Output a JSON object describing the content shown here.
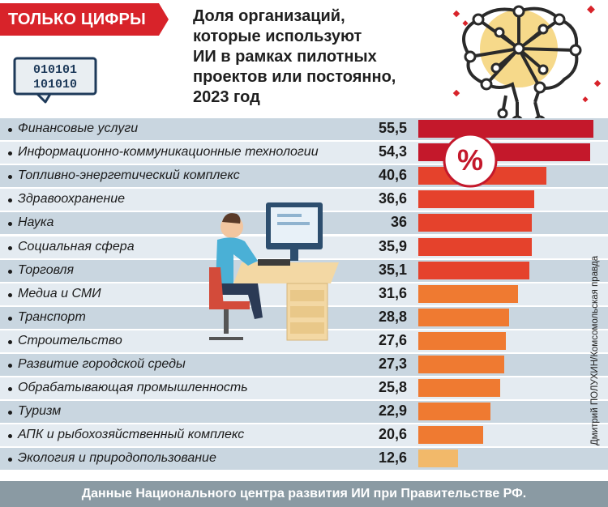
{
  "header": {
    "badge": "ТОЛЬКО ЦИФРЫ",
    "title_lines": [
      "Доля организаций,",
      "которые используют",
      "ИИ в рамках пилотных",
      "проектов или постоянно,",
      "2023 год"
    ],
    "binary_lines": [
      "010101",
      "101010"
    ]
  },
  "chart_data": {
    "type": "bar",
    "orientation": "horizontal",
    "categories": [
      "Финансовые услуги",
      "Информационно-коммуникационные технологии",
      "Топливно-энергетический комплекс",
      "Здравоохранение",
      "Наука",
      "Социальная сфера",
      "Торговля",
      "Медиа и СМИ",
      "Транспорт",
      "Строительство",
      "Развитие городской среды",
      "Обрабатывающая промышленность",
      "Туризм",
      "АПК и рыбохозяйственный комплекс",
      "Экология и природопользование"
    ],
    "values": [
      55.5,
      54.3,
      40.6,
      36.6,
      36,
      35.9,
      35.1,
      31.6,
      28.8,
      27.6,
      27.3,
      25.8,
      22.9,
      20.6,
      12.6
    ],
    "value_labels": [
      "55,5",
      "54,3",
      "40,6",
      "36,6",
      "36",
      "35,9",
      "35,1",
      "31,6",
      "28,8",
      "27,6",
      "27,3",
      "25,8",
      "22,9",
      "20,6",
      "12,6"
    ],
    "title": "Доля организаций, которые используют ИИ в рамках пилотных проектов или постоянно, 2023 год",
    "xlim": [
      0,
      58
    ],
    "grid": false,
    "colors": {
      "high": "#c4182b",
      "mid": "#e5422c",
      "orange": "#ef7a31",
      "low": "#f2b96a"
    }
  },
  "footer": {
    "source": "Данные Национального центра развития ИИ при Правительстве РФ."
  },
  "credit": "Дмитрий ПОЛУХИН/Комсомольская правда",
  "percent_symbol": "%"
}
